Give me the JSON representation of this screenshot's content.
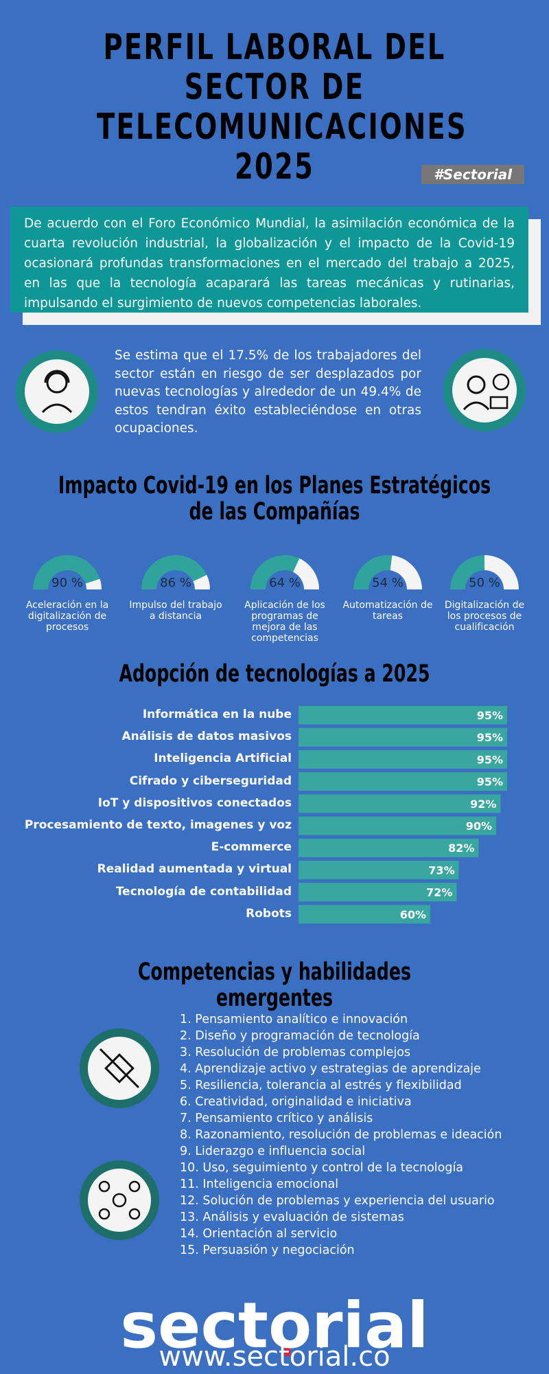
{
  "header": {
    "title": "PERFIL LABORAL DEL SECTOR DE TELECOMUNICACIONES 2025",
    "tag": "#Sectorial"
  },
  "intro": "De acuerdo con el Foro Económico Mundial, la asimilación económica de la cuarta revolución industrial, la globalización y el impacto de la Covid-19 ocasionará profundas transformaciones en el mercado del trabajo a 2025, en las que la tecnología acaparará las tareas mecánicas y rutinarias, impulsando el surgimiento de nuevos competencias laborales.",
  "stat": "Se estima que el 17.5% de los trabajadores del sector están en riesgo de ser desplazados por nuevas tecnologías y alrededor de un 49.4% de estos tendran éxito estableciéndose en otras ocupaciones.",
  "chart_data": [
    {
      "type": "gauge",
      "title": "Impacto Covid-19 en los Planes Estratégicos de las Compañías",
      "categories": [
        "Aceleración en la digitalización de procesos",
        "Impulso del trabajo a distancia",
        "Aplicación de los programas de mejora de las competencias",
        "Automatización de tareas",
        "Digitalización de los procesos de cualificación"
      ],
      "values": [
        90,
        86,
        64,
        54,
        50
      ],
      "value_labels": [
        "90 %",
        "86 %",
        "64 %",
        "54 %",
        "50 %"
      ],
      "ylim": [
        0,
        100
      ],
      "color": "#2fa39c"
    },
    {
      "type": "hbar",
      "title": "Adopción de tecnologías a 2025",
      "categories": [
        "Informática en la nube",
        "Análisis de datos masivos",
        "Inteligencia Artificial",
        "Cifrado y ciberseguridad",
        "IoT y dispositivos conectados",
        "Procesamiento de texto, imagenes y voz",
        "E-commerce",
        "Realidad aumentada y virtual",
        "Tecnología de contabilidad",
        "Robots"
      ],
      "values": [
        95,
        95,
        95,
        95,
        92,
        90,
        82,
        73,
        72,
        60
      ],
      "value_labels": [
        "95%",
        "95%",
        "95%",
        "95%",
        "92%",
        "90%",
        "82%",
        "73%",
        "72%",
        "60%"
      ],
      "xlim": [
        0,
        100
      ],
      "color": "#3aa6a0"
    }
  ],
  "skills": {
    "title": "Competencias y habilidades emergentes",
    "items": [
      "1. Pensamiento analítico e innovación",
      "2. Diseño y programación de tecnología",
      "3. Resolución de problemas complejos",
      "4. Aprendizaje activo y estrategias de aprendizaje",
      "5. Resiliencia, tolerancia al estrés y flexibilidad",
      "6. Creatividad, originalidad e iniciativa",
      "7. Pensamiento crítico y análisis",
      "8. Razonamiento, resolución de problemas e ideación",
      "9. Liderazgo e influencia social",
      "10. Uso, seguimiento y control de la tecnología",
      "11. Inteligencia emocional",
      "12. Solución de problemas y experiencia del usuario",
      "13. Análisis y evaluación de sistemas",
      "14. Orientación al servicio",
      "15. Persuasión y negociación"
    ]
  },
  "footer": {
    "logo": "sectorial",
    "url": "www.sectorial.co"
  }
}
